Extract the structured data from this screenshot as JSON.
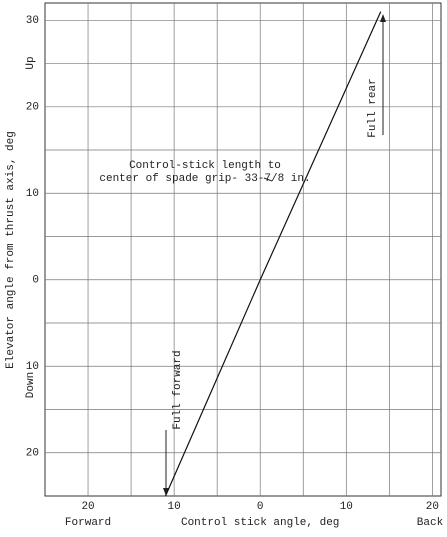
{
  "chart_data": {
    "type": "line",
    "xlabel": "Control stick angle, deg",
    "ylabel": "Elevator angle from thrust axis, deg",
    "x_left_label": "Forward",
    "x_right_label": "Back",
    "y_top_label": "Up",
    "y_bottom_label": "Down",
    "annotation": [
      "Control-stick length to",
      "center of spade grip- 33-7/8 in."
    ],
    "full_rear_label": "Full rear",
    "full_forward_label": "Full forward",
    "x": [
      -11,
      0,
      14
    ],
    "values": [
      -25,
      0,
      31
    ],
    "color": "#111111",
    "xlim": [
      -25,
      21
    ],
    "ylim": [
      -25,
      32
    ],
    "xticks": [
      {
        "value": -20,
        "label": "20"
      },
      {
        "value": -10,
        "label": "10"
      },
      0,
      10,
      20
    ],
    "yticks": [
      30,
      20,
      10,
      0,
      {
        "value": -10,
        "label": "10"
      },
      {
        "value": -20,
        "label": "20"
      }
    ],
    "x_minor_ticks": [
      -15,
      -5,
      5,
      15
    ],
    "y_minor_ticks": [
      25,
      15,
      5,
      -5,
      -15
    ],
    "grid": true
  }
}
